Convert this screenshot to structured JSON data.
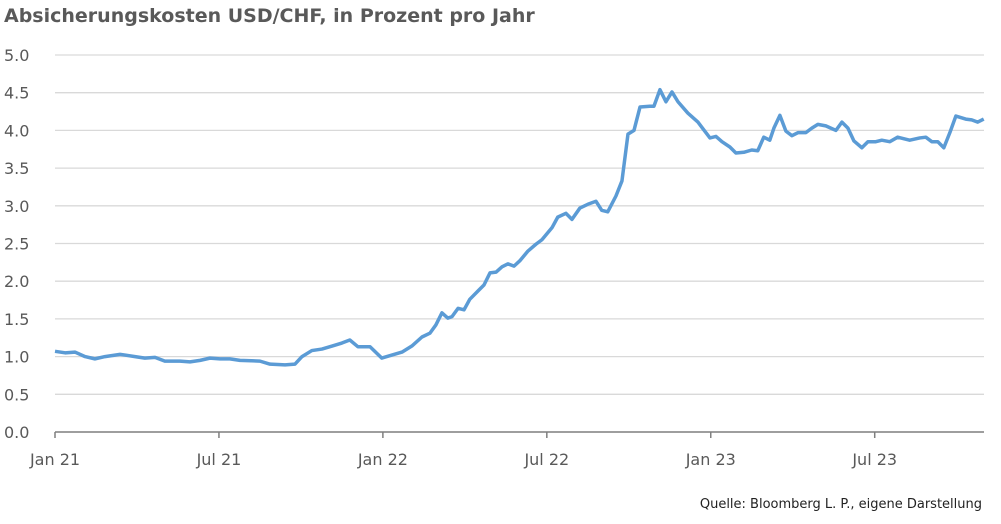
{
  "chart_data": {
    "type": "line",
    "title": "Absicherungskosten USD/CHF, in Prozent pro Jahr",
    "source": "Quelle: Bloomberg L. P., eigene Darstellung",
    "color": "#5b9bd5",
    "grid": true,
    "xlim": [
      0,
      34
    ],
    "xticks": [
      {
        "value": 0,
        "label": "Jan 21"
      },
      {
        "value": 6,
        "label": "Jul 21"
      },
      {
        "value": 12,
        "label": "Jan 22"
      },
      {
        "value": 18,
        "label": "Jul 22"
      },
      {
        "value": 24,
        "label": "Jan 23"
      },
      {
        "value": 30,
        "label": "Jul 23"
      }
    ],
    "ylim": [
      0,
      5
    ],
    "yticks": [
      {
        "value": 0,
        "label": "0.0"
      },
      0.5,
      {
        "value": 1,
        "label": "1.0"
      },
      1.5,
      {
        "value": 2,
        "label": "2.0"
      },
      2.5,
      {
        "value": 3,
        "label": "3.0"
      },
      3.5,
      {
        "value": 4,
        "label": "4.0"
      },
      4.5,
      {
        "value": 5,
        "label": "5.0"
      }
    ],
    "x": [
      0,
      0.37,
      0.73,
      1.1,
      1.46,
      1.83,
      2.38,
      2.93,
      3.29,
      3.66,
      4.02,
      4.57,
      4.94,
      5.31,
      5.67,
      6.04,
      6.4,
      6.77,
      7.5,
      7.87,
      8.42,
      8.78,
      9.04,
      9.4,
      9.77,
      10.14,
      10.5,
      10.79,
      11.09,
      11.53,
      11.96,
      12.33,
      12.7,
      13.06,
      13.43,
      13.72,
      13.94,
      14.16,
      14.38,
      14.53,
      14.75,
      14.97,
      15.18,
      15.48,
      15.7,
      15.92,
      16.14,
      16.36,
      16.58,
      16.8,
      17.01,
      17.31,
      17.6,
      17.82,
      18.19,
      18.4,
      18.7,
      18.92,
      19.21,
      19.5,
      19.8,
      20.01,
      20.23,
      20.53,
      20.75,
      20.97,
      21.19,
      21.41,
      21.77,
      21.92,
      22.14,
      22.36,
      22.58,
      22.8,
      23.16,
      23.53,
      23.97,
      24.19,
      24.41,
      24.7,
      24.92,
      25.21,
      25.5,
      25.72,
      25.94,
      26.16,
      26.31,
      26.53,
      26.75,
      26.97,
      27.19,
      27.48,
      27.7,
      27.92,
      28.21,
      28.58,
      28.8,
      29.02,
      29.24,
      29.53,
      29.75,
      30.04,
      30.26,
      30.55,
      30.84,
      31.28,
      31.65,
      31.87,
      32.09,
      32.31,
      32.53,
      32.75,
      32.97,
      33.33,
      33.55,
      33.77,
      33.99
    ],
    "values": [
      1.07,
      1.05,
      1.06,
      1.0,
      0.97,
      1.0,
      1.03,
      1.0,
      0.98,
      0.99,
      0.94,
      0.94,
      0.93,
      0.95,
      0.98,
      0.97,
      0.97,
      0.95,
      0.94,
      0.9,
      0.89,
      0.9,
      1.0,
      1.08,
      1.1,
      1.14,
      1.18,
      1.22,
      1.13,
      1.13,
      0.98,
      1.02,
      1.06,
      1.14,
      1.26,
      1.31,
      1.42,
      1.58,
      1.51,
      1.53,
      1.64,
      1.62,
      1.76,
      1.87,
      1.95,
      2.11,
      2.12,
      2.19,
      2.23,
      2.2,
      2.27,
      2.4,
      2.49,
      2.55,
      2.71,
      2.85,
      2.9,
      2.82,
      2.97,
      3.02,
      3.06,
      2.94,
      2.92,
      3.13,
      3.33,
      3.95,
      4.0,
      4.31,
      4.32,
      4.32,
      4.54,
      4.38,
      4.51,
      4.38,
      4.23,
      4.11,
      3.9,
      3.92,
      3.85,
      3.78,
      3.7,
      3.71,
      3.74,
      3.73,
      3.91,
      3.87,
      4.03,
      4.2,
      3.99,
      3.93,
      3.97,
      3.97,
      4.03,
      4.08,
      4.06,
      4.0,
      4.11,
      4.03,
      3.86,
      3.77,
      3.85,
      3.85,
      3.87,
      3.85,
      3.91,
      3.87,
      3.9,
      3.91,
      3.85,
      3.85,
      3.77,
      3.97,
      4.19,
      4.15,
      4.14,
      4.11,
      4.15
    ]
  }
}
